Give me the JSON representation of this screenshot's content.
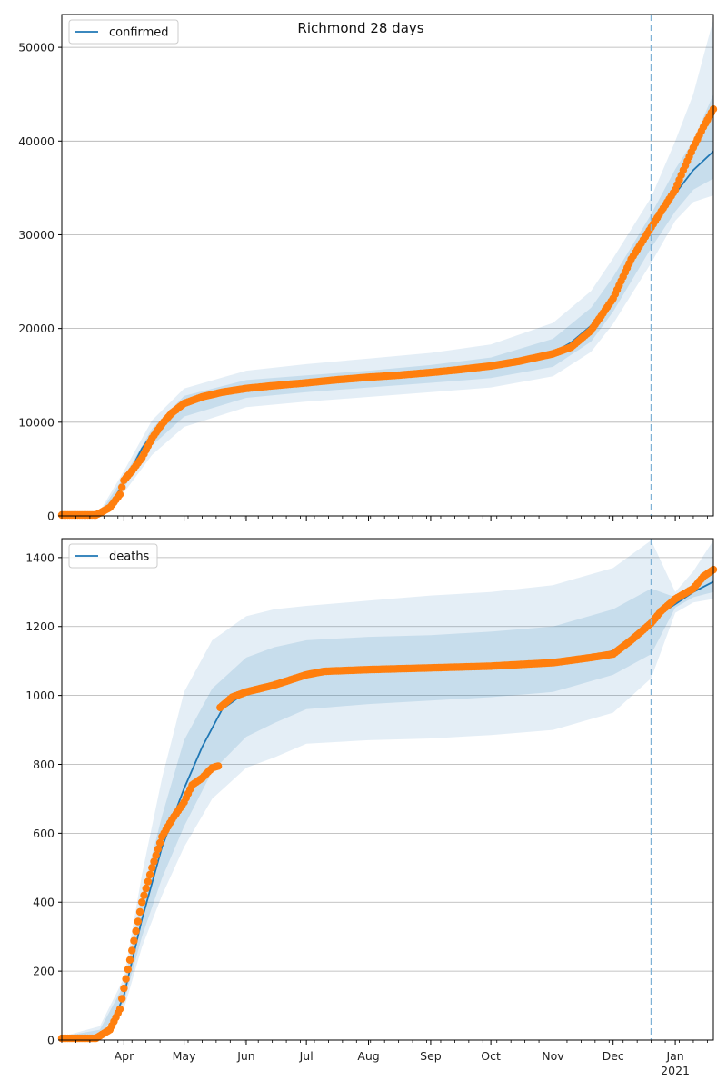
{
  "title": "Richmond 28 days",
  "colors": {
    "model": "#1f77b4",
    "observed": "#ff7f0e",
    "band": "#1f77b4",
    "vline": "#7fb2d6",
    "grid": "#b0b0b0"
  },
  "x_axis": {
    "start": "2020-03-01",
    "end": "2021-01-20",
    "tick_labels": [
      {
        "date": "2020-04-01",
        "label": "Apr"
      },
      {
        "date": "2020-05-01",
        "label": "May"
      },
      {
        "date": "2020-06-01",
        "label": "Jun"
      },
      {
        "date": "2020-07-01",
        "label": "Jul"
      },
      {
        "date": "2020-08-01",
        "label": "Aug"
      },
      {
        "date": "2020-09-01",
        "label": "Sep"
      },
      {
        "date": "2020-10-01",
        "label": "Oct"
      },
      {
        "date": "2020-11-01",
        "label": "Nov"
      },
      {
        "date": "2020-12-01",
        "label": "Dec"
      },
      {
        "date": "2021-01-01",
        "label": "Jan"
      }
    ],
    "year_label": "2021",
    "forecast_line_date": "2020-12-20"
  },
  "chart_data": [
    {
      "type": "line",
      "panel": "top",
      "legend": "confirmed",
      "legend_position": "upper-left",
      "ylim": [
        0,
        53500
      ],
      "yticks": [
        0,
        10000,
        20000,
        30000,
        40000,
        50000
      ],
      "grid": true,
      "model": {
        "dates": [
          "2020-03-01",
          "2020-03-10",
          "2020-03-20",
          "2020-03-25",
          "2020-04-01",
          "2020-04-10",
          "2020-04-20",
          "2020-05-01",
          "2020-05-15",
          "2020-06-01",
          "2020-06-15",
          "2020-07-01",
          "2020-07-15",
          "2020-08-01",
          "2020-08-15",
          "2020-09-01",
          "2020-09-15",
          "2020-10-01",
          "2020-10-15",
          "2020-11-01",
          "2020-11-10",
          "2020-11-20",
          "2020-12-01",
          "2020-12-10",
          "2020-12-20",
          "2021-01-01",
          "2021-01-10",
          "2021-01-20"
        ],
        "values": [
          100,
          100,
          200,
          1200,
          3500,
          7200,
          10200,
          12000,
          13000,
          13600,
          13900,
          14100,
          14300,
          14600,
          14800,
          15200,
          15500,
          15900,
          16400,
          17400,
          18500,
          20300,
          23500,
          27300,
          30800,
          34400,
          36900,
          38900
        ]
      },
      "bands": {
        "dates": [
          "2020-03-01",
          "2020-03-20",
          "2020-04-01",
          "2020-04-15",
          "2020-05-01",
          "2020-06-01",
          "2020-07-01",
          "2020-08-01",
          "2020-09-01",
          "2020-10-01",
          "2020-11-01",
          "2020-11-20",
          "2020-12-01",
          "2020-12-20",
          "2021-01-01",
          "2021-01-10",
          "2021-01-20"
        ],
        "lower_outer": [
          0,
          0,
          2500,
          6500,
          9500,
          11600,
          12200,
          12700,
          13200,
          13700,
          14900,
          17500,
          20500,
          27000,
          31500,
          33500,
          34200
        ],
        "lower_mid": [
          0,
          100,
          3000,
          7500,
          10600,
          12600,
          13200,
          13700,
          14200,
          14700,
          15900,
          18600,
          21800,
          28600,
          32500,
          34800,
          36000
        ],
        "upper_mid": [
          300,
          300,
          4200,
          9300,
          12800,
          14500,
          15000,
          15500,
          16100,
          16900,
          18900,
          22200,
          25500,
          32200,
          37000,
          40000,
          45000
        ],
        "upper_outer": [
          500,
          500,
          4800,
          10200,
          13600,
          15500,
          16200,
          16800,
          17400,
          18300,
          20600,
          24000,
          27500,
          34000,
          40000,
          45000,
          53000
        ]
      },
      "observed": {
        "dates": [
          "2020-03-01",
          "2020-03-18",
          "2020-03-20",
          "2020-03-25",
          "2020-03-30",
          "2020-04-01",
          "2020-04-05",
          "2020-04-10",
          "2020-04-15",
          "2020-04-20",
          "2020-04-25",
          "2020-05-01",
          "2020-05-10",
          "2020-05-20",
          "2020-06-01",
          "2020-06-15",
          "2020-07-01",
          "2020-07-15",
          "2020-08-01",
          "2020-08-15",
          "2020-09-01",
          "2020-09-15",
          "2020-10-01",
          "2020-10-15",
          "2020-11-01",
          "2020-11-10",
          "2020-11-20",
          "2020-12-01",
          "2020-12-10",
          "2020-12-20",
          "2020-12-25",
          "2021-01-01",
          "2021-01-05",
          "2021-01-10",
          "2021-01-15",
          "2021-01-20"
        ],
        "values": [
          100,
          100,
          300,
          900,
          2300,
          3800,
          4800,
          6200,
          8300,
          9800,
          11000,
          12000,
          12700,
          13200,
          13600,
          13900,
          14200,
          14500,
          14800,
          15000,
          15300,
          15600,
          16000,
          16500,
          17300,
          18000,
          19800,
          23200,
          27400,
          30800,
          32500,
          34800,
          36900,
          39300,
          41500,
          43400
        ]
      }
    },
    {
      "type": "line",
      "panel": "bottom",
      "legend": "deaths",
      "legend_position": "upper-left",
      "ylim": [
        0,
        1455
      ],
      "yticks": [
        0,
        200,
        400,
        600,
        800,
        1000,
        1200,
        1400
      ],
      "grid": true,
      "model": {
        "dates": [
          "2020-03-01",
          "2020-03-15",
          "2020-03-25",
          "2020-04-01",
          "2020-04-10",
          "2020-04-20",
          "2020-05-01",
          "2020-05-10",
          "2020-05-20",
          "2020-06-01",
          "2020-06-15",
          "2020-07-01",
          "2020-07-15",
          "2020-08-01",
          "2020-09-01",
          "2020-10-01",
          "2020-11-01",
          "2020-11-20",
          "2020-12-01",
          "2020-12-10",
          "2020-12-20",
          "2021-01-01",
          "2021-01-10",
          "2021-01-20"
        ],
        "values": [
          5,
          5,
          30,
          130,
          350,
          560,
          730,
          850,
          960,
          1010,
          1030,
          1060,
          1070,
          1075,
          1080,
          1085,
          1095,
          1110,
          1130,
          1170,
          1220,
          1265,
          1300,
          1330
        ]
      },
      "bands": {
        "dates": [
          "2020-03-01",
          "2020-03-20",
          "2020-04-01",
          "2020-04-10",
          "2020-04-20",
          "2020-05-01",
          "2020-05-15",
          "2020-06-01",
          "2020-06-15",
          "2020-07-01",
          "2020-08-01",
          "2020-09-01",
          "2020-10-01",
          "2020-11-01",
          "2020-12-01",
          "2020-12-20",
          "2021-01-01",
          "2021-01-10",
          "2021-01-20"
        ],
        "lower_outer": [
          0,
          10,
          90,
          270,
          420,
          560,
          700,
          790,
          820,
          860,
          870,
          875,
          885,
          900,
          950,
          1050,
          1240,
          1270,
          1280
        ],
        "lower_mid": [
          0,
          12,
          110,
          300,
          470,
          620,
          780,
          880,
          920,
          960,
          975,
          985,
          995,
          1010,
          1060,
          1120,
          1255,
          1285,
          1300
        ],
        "upper_mid": [
          10,
          30,
          160,
          420,
          650,
          870,
          1020,
          1110,
          1140,
          1160,
          1170,
          1175,
          1185,
          1200,
          1250,
          1310,
          1285,
          1320,
          1380
        ],
        "upper_outer": [
          10,
          40,
          180,
          480,
          760,
          1010,
          1160,
          1230,
          1250,
          1260,
          1275,
          1290,
          1300,
          1320,
          1370,
          1450,
          1300,
          1360,
          1450
        ]
      },
      "observed": {
        "dates": [
          "2020-03-01",
          "2020-03-18",
          "2020-03-25",
          "2020-03-30",
          "2020-04-01",
          "2020-04-05",
          "2020-04-10",
          "2020-04-15",
          "2020-04-20",
          "2020-04-25",
          "2020-05-01",
          "2020-05-05",
          "2020-05-10",
          "2020-05-15",
          "2020-05-18",
          "2020-05-19",
          "2020-05-25",
          "2020-06-01",
          "2020-06-15",
          "2020-07-01",
          "2020-07-10",
          "2020-08-01",
          "2020-09-01",
          "2020-10-01",
          "2020-11-01",
          "2020-11-20",
          "2020-12-01",
          "2020-12-10",
          "2020-12-20",
          "2020-12-25",
          "2021-01-01",
          "2021-01-10",
          "2021-01-15",
          "2021-01-20"
        ],
        "values": [
          5,
          5,
          30,
          90,
          150,
          260,
          400,
          500,
          590,
          640,
          690,
          740,
          760,
          790,
          795,
          965,
          995,
          1010,
          1030,
          1060,
          1070,
          1075,
          1080,
          1085,
          1095,
          1110,
          1120,
          1160,
          1210,
          1245,
          1280,
          1310,
          1345,
          1365
        ]
      }
    }
  ]
}
